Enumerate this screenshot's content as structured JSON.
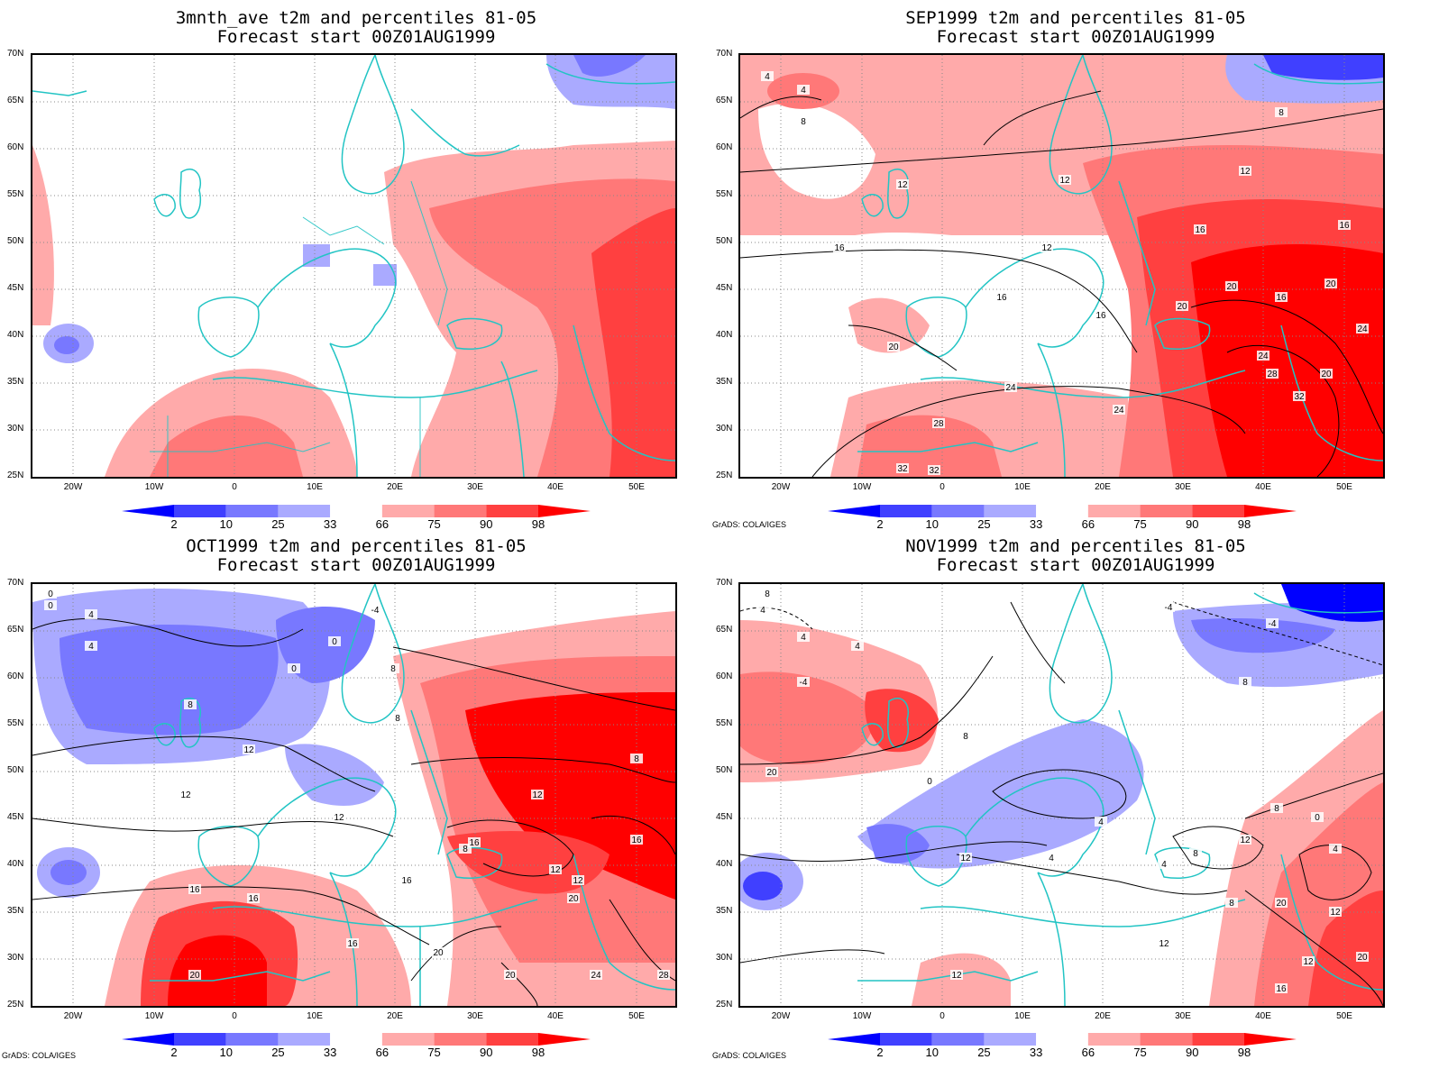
{
  "panels": [
    {
      "title_line1": "3mnth_ave t2m and percentiles 81-05",
      "title_line2": "Forecast start 00Z01AUG1999",
      "credit": ""
    },
    {
      "title_line1": "SEP1999 t2m and percentiles 81-05",
      "title_line2": "Forecast start 00Z01AUG1999",
      "credit": "GrADS: COLA/IGES"
    },
    {
      "title_line1": "OCT1999 t2m and percentiles 81-05",
      "title_line2": "Forecast start 00Z01AUG1999",
      "credit": "GrADS: COLA/IGES"
    },
    {
      "title_line1": "NOV1999 t2m and percentiles 81-05",
      "title_line2": "Forecast start 00Z01AUG1999",
      "credit": "GrADS: COLA/IGES"
    }
  ],
  "lat_labels": [
    "70N",
    "65N",
    "60N",
    "55N",
    "50N",
    "45N",
    "40N",
    "35N",
    "30N",
    "25N"
  ],
  "lon_labels": [
    "20W",
    "10W",
    "0",
    "10E",
    "20E",
    "30E",
    "40E",
    "50E"
  ],
  "colorbar": {
    "labels": [
      "2",
      "10",
      "25",
      "33",
      "66",
      "75",
      "90",
      "98"
    ],
    "colors": [
      "#0000ff",
      "#4040ff",
      "#7878ff",
      "#aaaaff",
      "#ffffff",
      "#ffaaaa",
      "#ff7878",
      "#ff4040",
      "#ff0000"
    ]
  },
  "contour_labels": {
    "p2": [
      "4",
      "4",
      "8",
      "8",
      "12",
      "12",
      "12",
      "12",
      "16",
      "16",
      "16",
      "16",
      "16",
      "16",
      "20",
      "20",
      "20",
      "20",
      "20",
      "24",
      "24",
      "24",
      "24",
      "28",
      "28",
      "32",
      "32",
      "32"
    ],
    "p3": [
      "0",
      "0",
      "4",
      "4",
      "-4",
      "0",
      "0",
      "8",
      "8",
      "8",
      "8",
      "8",
      "12",
      "12",
      "12",
      "12",
      "12",
      "12",
      "16",
      "16",
      "16",
      "16",
      "16",
      "16",
      "20",
      "20",
      "20",
      "20",
      "24",
      "24",
      "24",
      "28"
    ],
    "p4": [
      "4",
      "4",
      "4",
      "-4",
      "-4",
      "8",
      "8",
      "8",
      "0",
      "0",
      "4",
      "4",
      "4",
      "4",
      "8",
      "8",
      "8",
      "12",
      "12",
      "12",
      "12",
      "12",
      "12",
      "16",
      "16",
      "16",
      "16",
      "20",
      "20",
      "20",
      "24",
      "-8",
      "-4"
    ]
  },
  "colors": {
    "coastline": "#22c4c4",
    "contour": "#000000"
  }
}
